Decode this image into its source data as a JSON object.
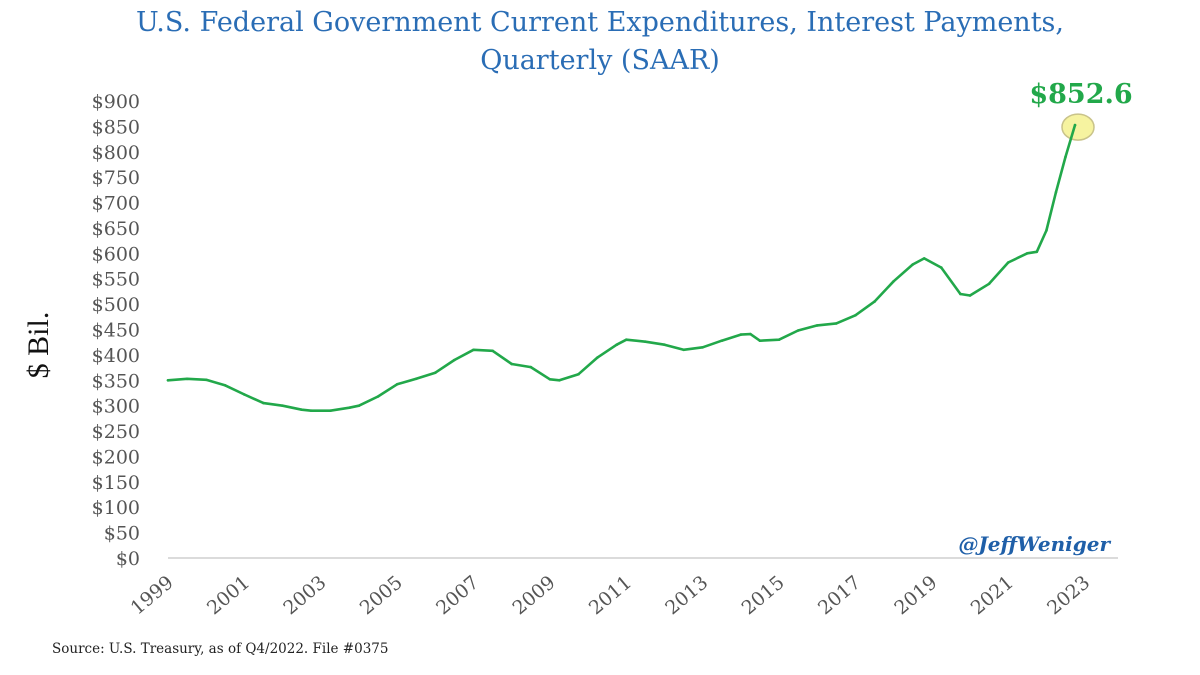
{
  "chart_data": {
    "type": "line",
    "title_line1": "U.S. Federal Government Current Expenditures, Interest Payments,",
    "title_line2": "Quarterly (SAAR)",
    "xlabel": "",
    "ylabel": "$ Bil.",
    "ylim": [
      0,
      900
    ],
    "xlim": [
      1999,
      2023
    ],
    "grid": false,
    "y_ticks": [
      {
        "value": 900,
        "label": "$900"
      },
      {
        "value": 850,
        "label": "$850"
      },
      {
        "value": 800,
        "label": "$800"
      },
      {
        "value": 750,
        "label": "$750"
      },
      {
        "value": 700,
        "label": "$700"
      },
      {
        "value": 650,
        "label": "$650"
      },
      {
        "value": 600,
        "label": "$600"
      },
      {
        "value": 550,
        "label": "$550"
      },
      {
        "value": 500,
        "label": "$500"
      },
      {
        "value": 450,
        "label": "$450"
      },
      {
        "value": 400,
        "label": "$400"
      },
      {
        "value": 350,
        "label": "$350"
      },
      {
        "value": 300,
        "label": "$300"
      },
      {
        "value": 250,
        "label": "$250"
      },
      {
        "value": 200,
        "label": "$200"
      },
      {
        "value": 150,
        "label": "$150"
      },
      {
        "value": 100,
        "label": "$100"
      },
      {
        "value": 50,
        "label": "$50"
      },
      {
        "value": 0,
        "label": "$0"
      }
    ],
    "x_ticks": [
      "1999",
      "2001",
      "2003",
      "2005",
      "2007",
      "2009",
      "2011",
      "2013",
      "2015",
      "2017",
      "2019",
      "2021",
      "2023"
    ],
    "series": [
      {
        "name": "Interest Payments",
        "color": "#22a84a",
        "x": [
          1999.0,
          1999.5,
          2000.0,
          2000.5,
          2001.0,
          2001.5,
          2002.0,
          2002.5,
          2002.75,
          2003.25,
          2003.75,
          2004.0,
          2004.5,
          2005.0,
          2005.5,
          2006.0,
          2006.5,
          2007.0,
          2007.5,
          2008.0,
          2008.5,
          2009.0,
          2009.25,
          2009.75,
          2010.25,
          2010.75,
          2011.0,
          2011.5,
          2012.0,
          2012.5,
          2013.0,
          2013.5,
          2014.0,
          2014.25,
          2014.5,
          2015.0,
          2015.5,
          2016.0,
          2016.5,
          2017.0,
          2017.5,
          2018.0,
          2018.5,
          2018.8,
          2019.25,
          2019.75,
          2020.0,
          2020.5,
          2021.0,
          2021.5,
          2021.75,
          2022.0,
          2022.25,
          2022.5,
          2022.75
        ],
        "values": [
          350,
          353,
          351,
          340,
          322,
          305,
          300,
          292,
          290,
          290,
          296,
          300,
          318,
          342,
          353,
          365,
          390,
          410,
          408,
          382,
          376,
          352,
          350,
          362,
          395,
          420,
          430,
          426,
          420,
          410,
          415,
          428,
          440,
          441,
          428,
          430,
          448,
          458,
          462,
          478,
          505,
          545,
          578,
          590,
          572,
          520,
          517,
          540,
          582,
          600,
          603,
          645,
          720,
          790,
          852.6
        ]
      }
    ],
    "annotations": [
      {
        "text": "$852.6",
        "x": 2022.75,
        "value": 852.6,
        "color": "#22a84a",
        "marker": "highlight-circle",
        "marker_color": "#f6f3a0"
      }
    ],
    "watermark": "@JeffWeniger",
    "source": "Source: U.S. Treasury, as of Q4/2022. File #0375"
  }
}
